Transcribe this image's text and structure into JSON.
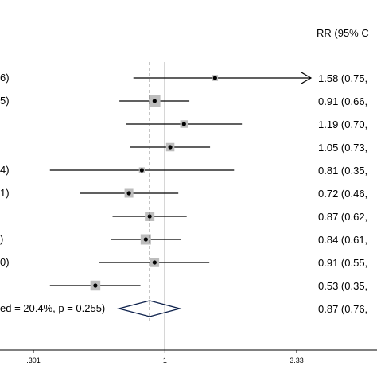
{
  "chart_data": {
    "type": "forest",
    "header_right": "RR (95% C",
    "x_ticks": [
      {
        "value": 0.301,
        "label": ".301"
      },
      {
        "value": 1,
        "label": "1"
      },
      {
        "value": 3.33,
        "label": "3.33"
      }
    ],
    "xlim": [
      0.301,
      3.33
    ],
    "log_scale": true,
    "reference_value": 1,
    "pooled_value": 0.87,
    "studies": [
      {
        "label": "6)",
        "rr": 1.58,
        "lo": 0.75,
        "hi": 3.33,
        "arrow": true,
        "weight": 0.15,
        "ci_text": "1.58 (0.75,"
      },
      {
        "label": "5)",
        "rr": 0.91,
        "lo": 0.66,
        "hi": 1.25,
        "arrow": false,
        "weight": 0.85,
        "ci_text": "0.91 (0.66,"
      },
      {
        "label": "",
        "rr": 1.19,
        "lo": 0.7,
        "hi": 2.02,
        "arrow": false,
        "weight": 0.35,
        "ci_text": "1.19 (0.70,"
      },
      {
        "label": "",
        "rr": 1.05,
        "lo": 0.73,
        "hi": 1.51,
        "arrow": false,
        "weight": 0.45,
        "ci_text": "1.05 (0.73,"
      },
      {
        "label": "4)",
        "rr": 0.81,
        "lo": 0.35,
        "hi": 1.88,
        "arrow": false,
        "weight": 0.12,
        "ci_text": "0.81 (0.35,"
      },
      {
        "label": "1)",
        "rr": 0.72,
        "lo": 0.46,
        "hi": 1.13,
        "arrow": false,
        "weight": 0.5,
        "ci_text": "0.72 (0.46,"
      },
      {
        "label": "",
        "rr": 0.87,
        "lo": 0.62,
        "hi": 1.22,
        "arrow": false,
        "weight": 0.6,
        "ci_text": "0.87 (0.62,"
      },
      {
        "label": ")",
        "rr": 0.84,
        "lo": 0.61,
        "hi": 1.16,
        "arrow": false,
        "weight": 0.7,
        "ci_text": "0.84 (0.61,"
      },
      {
        "label": "0)",
        "rr": 0.91,
        "lo": 0.55,
        "hi": 1.5,
        "arrow": false,
        "weight": 0.55,
        "ci_text": "0.91 (0.55,"
      },
      {
        "label": "",
        "rr": 0.53,
        "lo": 0.35,
        "hi": 0.8,
        "arrow": false,
        "weight": 0.65,
        "ci_text": "0.53 (0.35,"
      }
    ],
    "overall": {
      "label": "ed = 20.4%, p = 0.255)",
      "rr": 0.87,
      "lo": 0.76,
      "hi": 0.99,
      "ci_text": "0.87 (0.76,"
    }
  }
}
